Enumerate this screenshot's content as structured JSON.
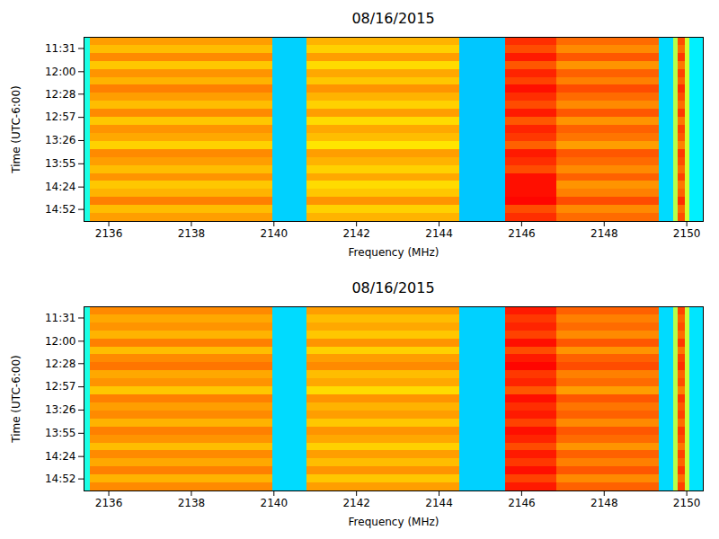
{
  "chart_data": [
    {
      "type": "heatmap",
      "title": "08/16/2015",
      "xlabel": "Frequency (MHz)",
      "ylabel": "Time (UTC-6:00)",
      "xlim": [
        2135.4,
        2150.4
      ],
      "xticks": [
        2136,
        2138,
        2140,
        2142,
        2144,
        2146,
        2148,
        2150
      ],
      "ylim": [
        907,
        677
      ],
      "yticks": [
        {
          "value": 691,
          "label": "11:31"
        },
        {
          "value": 720,
          "label": "12:00"
        },
        {
          "value": 748,
          "label": "12:28"
        },
        {
          "value": 777,
          "label": "12:57"
        },
        {
          "value": 806,
          "label": "13:26"
        },
        {
          "value": 835,
          "label": "13:55"
        },
        {
          "value": 864,
          "label": "14:24"
        },
        {
          "value": 892,
          "label": "14:52"
        }
      ],
      "zlim": [
        0,
        100
      ],
      "x_edges": [
        2135.4,
        2135.55,
        2139.98,
        2140.8,
        2144.5,
        2145.6,
        2146.85,
        2149.33,
        2149.68,
        2149.8,
        2149.97,
        2150.08,
        2150.4
      ],
      "y_edges": [
        677,
        687,
        697,
        707,
        717,
        727,
        737,
        747,
        757,
        767,
        777,
        787,
        797,
        807,
        817,
        827,
        837,
        847,
        857,
        867,
        877,
        887,
        897,
        907
      ],
      "cells": [
        [
          40,
          72,
          33,
          70,
          32,
          83,
          77,
          34,
          55,
          80,
          58,
          36
        ],
        [
          40,
          69,
          33,
          67,
          32,
          80,
          74,
          34,
          55,
          77,
          58,
          36
        ],
        [
          40,
          74,
          33,
          72,
          32,
          85,
          79,
          34,
          55,
          82,
          58,
          36
        ],
        [
          40,
          68,
          33,
          66,
          32,
          79,
          73,
          34,
          55,
          76,
          58,
          36
        ],
        [
          40,
          73,
          33,
          71,
          32,
          84,
          78,
          34,
          55,
          81,
          58,
          36
        ],
        [
          40,
          70,
          33,
          68,
          32,
          81,
          75,
          34,
          55,
          78,
          58,
          36
        ],
        [
          40,
          75,
          33,
          73,
          32,
          86,
          80,
          34,
          55,
          83,
          58,
          36
        ],
        [
          40,
          72,
          33,
          70,
          32,
          83,
          77,
          34,
          55,
          80,
          58,
          36
        ],
        [
          40,
          69,
          33,
          67,
          32,
          80,
          74,
          34,
          55,
          77,
          58,
          36
        ],
        [
          40,
          74,
          33,
          72,
          32,
          85,
          79,
          34,
          55,
          82,
          58,
          36
        ],
        [
          40,
          68,
          33,
          66,
          32,
          79,
          73,
          34,
          55,
          76,
          58,
          36
        ],
        [
          40,
          73,
          33,
          71,
          32,
          84,
          78,
          34,
          55,
          81,
          58,
          36
        ],
        [
          40,
          71,
          33,
          69,
          32,
          82,
          76,
          34,
          55,
          79,
          58,
          36
        ],
        [
          40,
          67,
          33,
          65,
          32,
          78,
          72,
          34,
          55,
          75,
          58,
          36
        ],
        [
          40,
          74,
          33,
          72,
          32,
          85,
          79,
          34,
          55,
          82,
          58,
          36
        ],
        [
          40,
          72,
          33,
          70,
          32,
          83,
          77,
          34,
          55,
          80,
          58,
          36
        ],
        [
          40,
          69,
          33,
          67,
          32,
          80,
          74,
          34,
          55,
          77,
          58,
          36
        ],
        [
          40,
          73,
          33,
          71,
          32,
          86,
          78,
          34,
          55,
          81,
          58,
          36
        ],
        [
          40,
          68,
          33,
          66,
          32,
          86,
          73,
          34,
          55,
          76,
          58,
          36
        ],
        [
          40,
          70,
          33,
          68,
          32,
          86,
          75,
          34,
          55,
          78,
          58,
          36
        ],
        [
          40,
          75,
          33,
          73,
          32,
          87,
          80,
          34,
          55,
          83,
          58,
          36
        ],
        [
          40,
          69,
          33,
          67,
          32,
          80,
          74,
          34,
          55,
          77,
          58,
          36
        ],
        [
          40,
          72,
          33,
          70,
          32,
          83,
          77,
          34,
          55,
          80,
          58,
          36
        ]
      ]
    },
    {
      "type": "heatmap",
      "title": "08/16/2015",
      "xlabel": "Frequency (MHz)",
      "ylabel": "Time (UTC-6:00)",
      "xlim": [
        2135.4,
        2150.4
      ],
      "xticks": [
        2136,
        2138,
        2140,
        2142,
        2144,
        2146,
        2148,
        2150
      ],
      "ylim": [
        907,
        677
      ],
      "yticks": [
        {
          "value": 691,
          "label": "11:31"
        },
        {
          "value": 720,
          "label": "12:00"
        },
        {
          "value": 748,
          "label": "12:28"
        },
        {
          "value": 777,
          "label": "12:57"
        },
        {
          "value": 806,
          "label": "13:26"
        },
        {
          "value": 835,
          "label": "13:55"
        },
        {
          "value": 864,
          "label": "14:24"
        },
        {
          "value": 892,
          "label": "14:52"
        }
      ],
      "zlim": [
        0,
        100
      ],
      "x_edges": [
        2135.4,
        2135.55,
        2139.98,
        2140.8,
        2144.5,
        2145.6,
        2146.85,
        2149.33,
        2149.68,
        2149.8,
        2149.97,
        2150.08,
        2150.4
      ],
      "y_edges": [
        677,
        687,
        697,
        707,
        717,
        727,
        737,
        747,
        757,
        767,
        777,
        787,
        797,
        807,
        817,
        827,
        837,
        847,
        857,
        867,
        877,
        887,
        897,
        907
      ],
      "cells": [
        [
          40,
          74,
          34,
          72,
          33,
          85,
          78,
          34,
          55,
          81,
          57,
          35
        ],
        [
          40,
          71,
          34,
          69,
          33,
          82,
          75,
          34,
          55,
          78,
          57,
          35
        ],
        [
          40,
          73,
          34,
          71,
          33,
          84,
          77,
          34,
          55,
          80,
          57,
          35
        ],
        [
          40,
          70,
          34,
          68,
          33,
          81,
          74,
          34,
          55,
          77,
          57,
          35
        ],
        [
          40,
          75,
          34,
          73,
          33,
          86,
          79,
          34,
          55,
          82,
          57,
          35
        ],
        [
          40,
          69,
          34,
          67,
          33,
          80,
          73,
          34,
          55,
          76,
          57,
          35
        ],
        [
          40,
          74,
          34,
          72,
          33,
          85,
          78,
          34,
          55,
          81,
          57,
          35
        ],
        [
          40,
          76,
          34,
          74,
          33,
          87,
          80,
          34,
          55,
          83,
          57,
          35
        ],
        [
          40,
          71,
          34,
          69,
          33,
          82,
          75,
          34,
          55,
          78,
          57,
          35
        ],
        [
          40,
          73,
          34,
          71,
          33,
          84,
          77,
          34,
          55,
          80,
          57,
          35
        ],
        [
          40,
          68,
          34,
          66,
          33,
          79,
          72,
          34,
          55,
          75,
          57,
          35
        ],
        [
          40,
          75,
          34,
          73,
          33,
          86,
          79,
          34,
          55,
          82,
          57,
          35
        ],
        [
          40,
          72,
          34,
          70,
          33,
          83,
          76,
          34,
          55,
          79,
          57,
          35
        ],
        [
          40,
          74,
          34,
          72,
          33,
          85,
          78,
          34,
          55,
          81,
          57,
          35
        ],
        [
          40,
          70,
          34,
          68,
          33,
          81,
          74,
          34,
          55,
          77,
          57,
          35
        ],
        [
          40,
          75,
          34,
          73,
          33,
          86,
          79,
          34,
          55,
          82,
          57,
          35
        ],
        [
          40,
          73,
          34,
          71,
          33,
          84,
          77,
          34,
          55,
          80,
          57,
          35
        ],
        [
          40,
          69,
          34,
          67,
          33,
          80,
          73,
          34,
          55,
          76,
          57,
          35
        ],
        [
          40,
          74,
          34,
          72,
          33,
          85,
          78,
          34,
          55,
          81,
          57,
          35
        ],
        [
          40,
          71,
          34,
          69,
          33,
          82,
          75,
          34,
          55,
          78,
          57,
          35
        ],
        [
          40,
          75,
          34,
          73,
          33,
          86,
          79,
          34,
          55,
          82,
          57,
          35
        ],
        [
          40,
          70,
          34,
          68,
          33,
          81,
          74,
          34,
          55,
          77,
          57,
          35
        ],
        [
          40,
          74,
          34,
          72,
          33,
          85,
          78,
          34,
          55,
          81,
          57,
          35
        ]
      ]
    }
  ]
}
